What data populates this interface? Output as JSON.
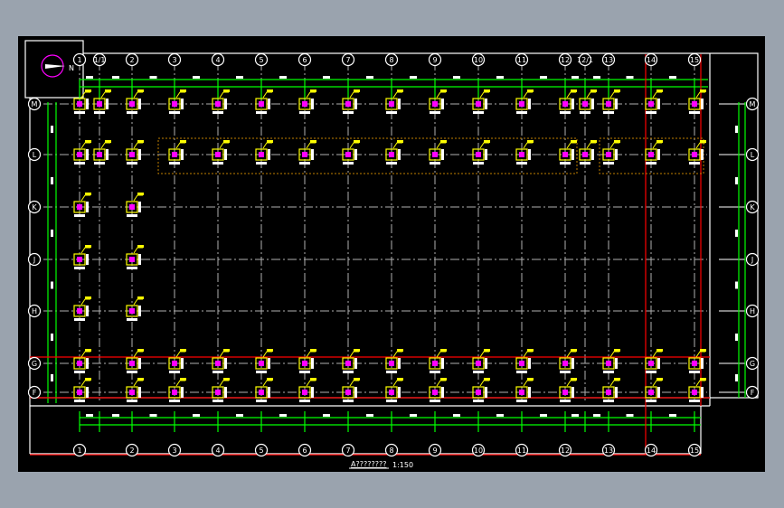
{
  "drawing": {
    "title": "A????????",
    "scale": "1:150",
    "north_arrow_label": "N",
    "column_axes": [
      "1",
      "1/1",
      "2",
      "3",
      "4",
      "5",
      "6",
      "7",
      "8",
      "9",
      "10",
      "11",
      "12",
      "12/1",
      "13",
      "14",
      "15"
    ],
    "row_axes": [
      "M",
      "L",
      "K",
      "J",
      "H",
      "G",
      "F"
    ],
    "colors": {
      "background": "#000000",
      "frame": "#ffffff",
      "axis_line": "#b0b0b0",
      "dimension_line": "#00ff00",
      "highlight_line": "#ff0000",
      "column_symbol": "#ffff00",
      "rebar": "#ff00ff",
      "group_outline": "#c08000"
    }
  }
}
